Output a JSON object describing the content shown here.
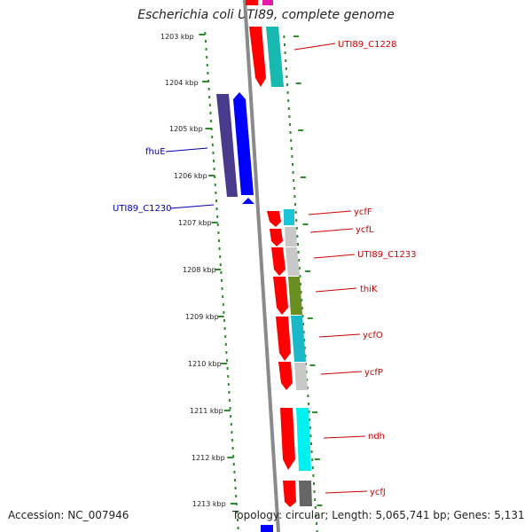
{
  "title": "Escherichia coli UTI89, complete genome",
  "footer": {
    "accession": "Accession: NC_007946",
    "summary": "Topology: circular; Length: 5,065,741 bp; Genes: 5,131"
  },
  "colors": {
    "backbone": "#8a8a8a",
    "tick": "#2e8b2e",
    "forward_strand": "#ff0000",
    "reverse_strand": "#0000ff",
    "label_red": "#cc0000",
    "label_blue": "#0000aa"
  },
  "kbp_ticks": [
    "1203 kbp",
    "1204 kbp",
    "1205 kbp",
    "1206 kbp",
    "1207 kbp",
    "1208 kbp",
    "1209 kbp",
    "1210 kbp",
    "1211 kbp",
    "1212 kbp",
    "1213 kbp"
  ],
  "gene_labels_right": [
    "UTI89_C1228",
    "ycfF",
    "ycfL",
    "UTI89_C1233",
    "thiK",
    "ycfO",
    "ycfP",
    "ndh",
    "ycfJ"
  ],
  "gene_labels_left": [
    "fhuE",
    "UTI89_C1230"
  ]
}
